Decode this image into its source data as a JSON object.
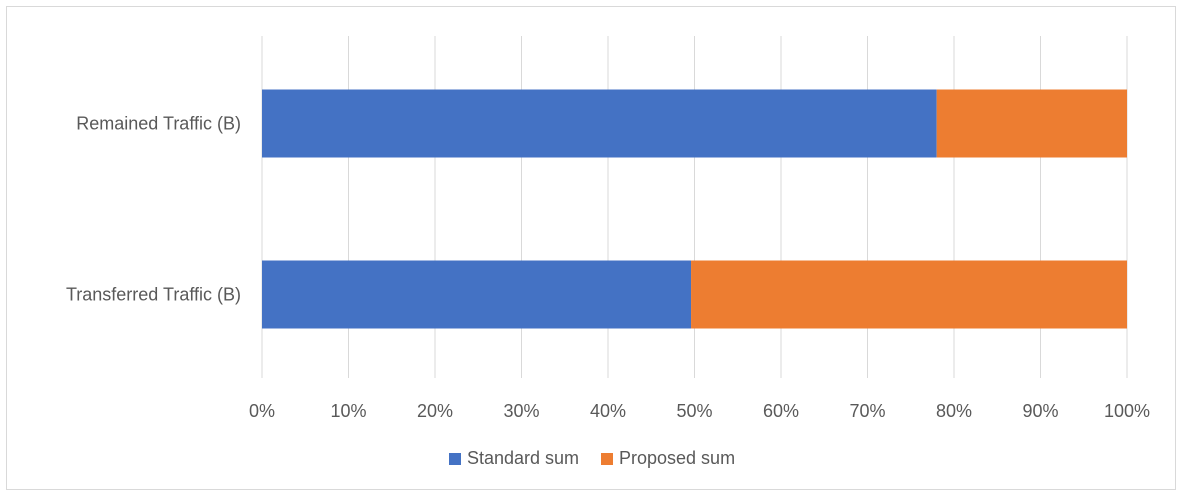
{
  "chart_data": {
    "type": "bar",
    "orientation": "horizontal",
    "stacked": "percent",
    "categories": [
      "Remained Traffic (B)",
      "Transferred Traffic (B)"
    ],
    "series": [
      {
        "name": "Standard sum",
        "values": [
          78,
          49.6
        ],
        "color": "#4472c4"
      },
      {
        "name": "Proposed sum",
        "values": [
          22,
          50.4
        ],
        "color": "#ed7d31"
      }
    ],
    "xlim": [
      0,
      100
    ],
    "xticks": [
      "0%",
      "10%",
      "20%",
      "30%",
      "40%",
      "50%",
      "60%",
      "70%",
      "80%",
      "90%",
      "100%"
    ],
    "grid": true,
    "legend_position": "bottom",
    "gridline_color": "#d9d9d9",
    "text_color": "#595959"
  }
}
